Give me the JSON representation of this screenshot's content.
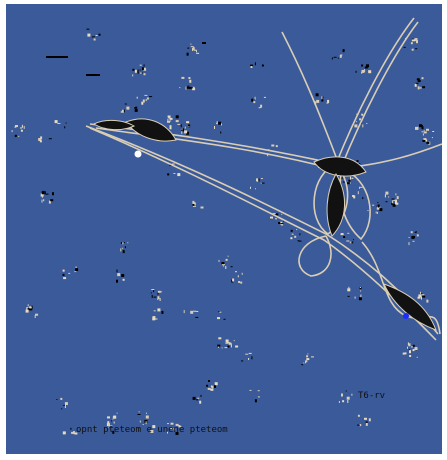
{
  "scene": {
    "background_color": "#3a5a9a",
    "frame_color": "#ffffff",
    "curve_fill": "#111111",
    "curve_stroke": "#d9cdb4",
    "speck_colors": [
      "#000000",
      "#d9cdb4",
      "#e8dcc0"
    ],
    "markers": [
      {
        "name": "white-dot",
        "color": "#ffffff"
      },
      {
        "name": "blue-dot",
        "color": "#1a2cff"
      }
    ]
  },
  "noise_text": {
    "bottom_left": "opnt pteteom e unene pteteom",
    "bottom_right": "T6-rv"
  }
}
